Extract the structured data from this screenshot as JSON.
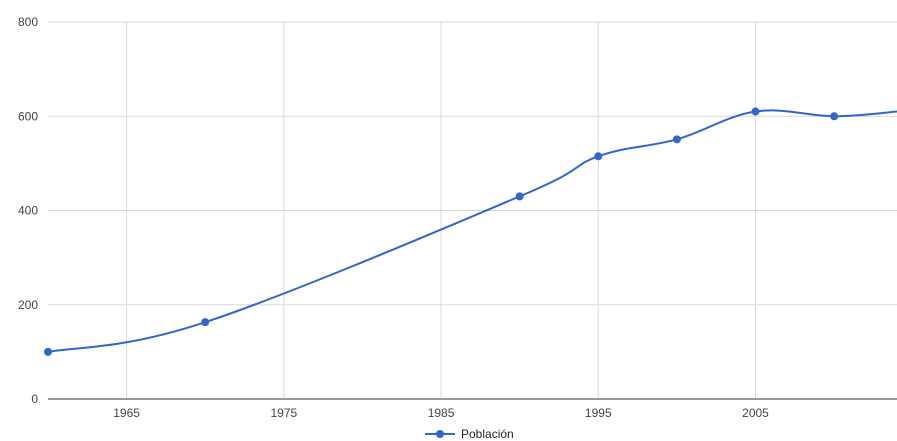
{
  "chart_data": {
    "type": "line",
    "title": "",
    "xlabel": "",
    "ylabel": "",
    "xlim": [
      1960,
      2014
    ],
    "ylim": [
      0,
      800
    ],
    "x_ticks": [
      1965,
      1975,
      1985,
      1995,
      2005
    ],
    "y_ticks": [
      0,
      200,
      400,
      600,
      800
    ],
    "grid": true,
    "legend_position": "bottom",
    "series": [
      {
        "name": "Población",
        "color": "#3366cc",
        "x": [
          1960,
          1970,
          1990,
          1995,
          2000,
          2005,
          2010,
          2014
        ],
        "y": [
          100,
          163,
          430,
          515,
          551,
          610,
          600,
          610
        ],
        "markers": [
          true,
          true,
          true,
          true,
          true,
          true,
          true,
          false
        ]
      }
    ]
  }
}
